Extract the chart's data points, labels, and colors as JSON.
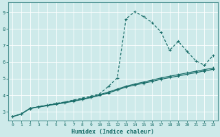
{
  "xlabel": "Humidex (Indice chaleur)",
  "bg_color": "#ceeaea",
  "grid_color": "#b0d8d8",
  "line_color": "#1a6e6a",
  "xlim": [
    -0.5,
    23.5
  ],
  "ylim": [
    2.5,
    9.6
  ],
  "xticks": [
    0,
    1,
    2,
    3,
    4,
    5,
    6,
    7,
    8,
    9,
    10,
    11,
    12,
    13,
    14,
    15,
    16,
    17,
    18,
    19,
    20,
    21,
    22,
    23
  ],
  "yticks": [
    3,
    4,
    5,
    6,
    7,
    8,
    9
  ],
  "line1_x": [
    0,
    1,
    2,
    3,
    4,
    5,
    6,
    7,
    8,
    9,
    10,
    11,
    12,
    13,
    14,
    15,
    16,
    17,
    18,
    19,
    20,
    21,
    22,
    23
  ],
  "line1_y": [
    2.72,
    2.88,
    3.22,
    3.32,
    3.4,
    3.5,
    3.58,
    3.68,
    3.78,
    3.9,
    4.05,
    4.2,
    4.38,
    4.55,
    4.68,
    4.8,
    4.92,
    5.05,
    5.15,
    5.25,
    5.35,
    5.45,
    5.55,
    5.65
  ],
  "line2_x": [
    0,
    1,
    2,
    3,
    4,
    5,
    6,
    7,
    8,
    9,
    10,
    11,
    12,
    13,
    14,
    15,
    16,
    17,
    18,
    19,
    20,
    21,
    22,
    23
  ],
  "line2_y": [
    2.72,
    2.88,
    3.22,
    3.32,
    3.42,
    3.52,
    3.6,
    3.72,
    3.85,
    3.95,
    4.1,
    4.55,
    5.05,
    8.6,
    9.05,
    8.75,
    8.38,
    7.82,
    6.72,
    7.25,
    6.65,
    6.08,
    5.82,
    6.42
  ],
  "line3_x": [
    0,
    1,
    2,
    3,
    4,
    5,
    6,
    7,
    8,
    9,
    10,
    11,
    12,
    13,
    14,
    15,
    16,
    17,
    18,
    19,
    20,
    21,
    22,
    23
  ],
  "line3_y": [
    2.72,
    2.88,
    3.2,
    3.3,
    3.38,
    3.47,
    3.55,
    3.65,
    3.75,
    3.87,
    4.0,
    4.15,
    4.32,
    4.5,
    4.62,
    4.73,
    4.84,
    4.97,
    5.07,
    5.17,
    5.27,
    5.37,
    5.47,
    5.57
  ]
}
